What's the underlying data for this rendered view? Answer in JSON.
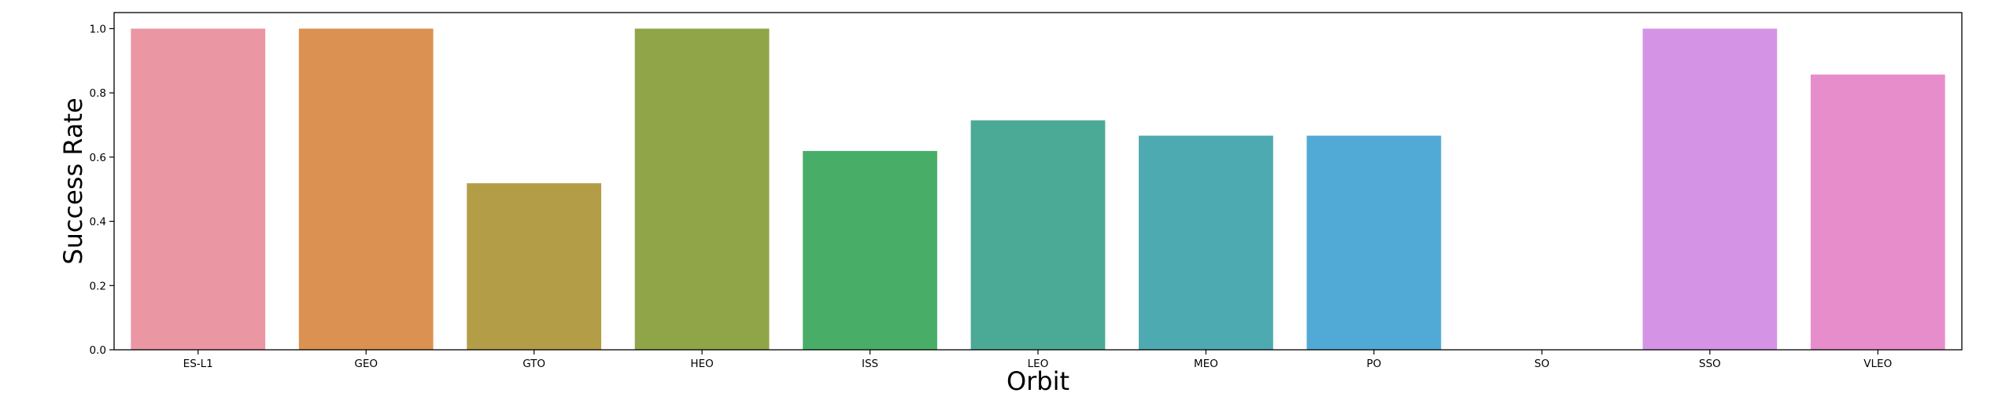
{
  "chart_data": {
    "type": "bar",
    "title": "",
    "xlabel": "Orbit",
    "ylabel": "Success Rate",
    "ylim": [
      0,
      1.05
    ],
    "yticks": [
      "0.0",
      "0.2",
      "0.4",
      "0.6",
      "0.8",
      "1.0"
    ],
    "categories": [
      "ES-L1",
      "GEO",
      "GTO",
      "HEO",
      "ISS",
      "LEO",
      "MEO",
      "PO",
      "SO",
      "SSO",
      "VLEO"
    ],
    "values": [
      1.0,
      1.0,
      0.518519,
      1.0,
      0.619048,
      0.714286,
      0.666667,
      0.666667,
      0.0,
      1.0,
      0.857143
    ],
    "colors": [
      "#ea96a3",
      "#db9151",
      "#b39d47",
      "#8fa548",
      "#48ae67",
      "#4baa95",
      "#4daab0",
      "#51aad5",
      "#a6a0e6",
      "#d593e6",
      "#e78dcb"
    ],
    "grid": false,
    "legend": "none"
  }
}
